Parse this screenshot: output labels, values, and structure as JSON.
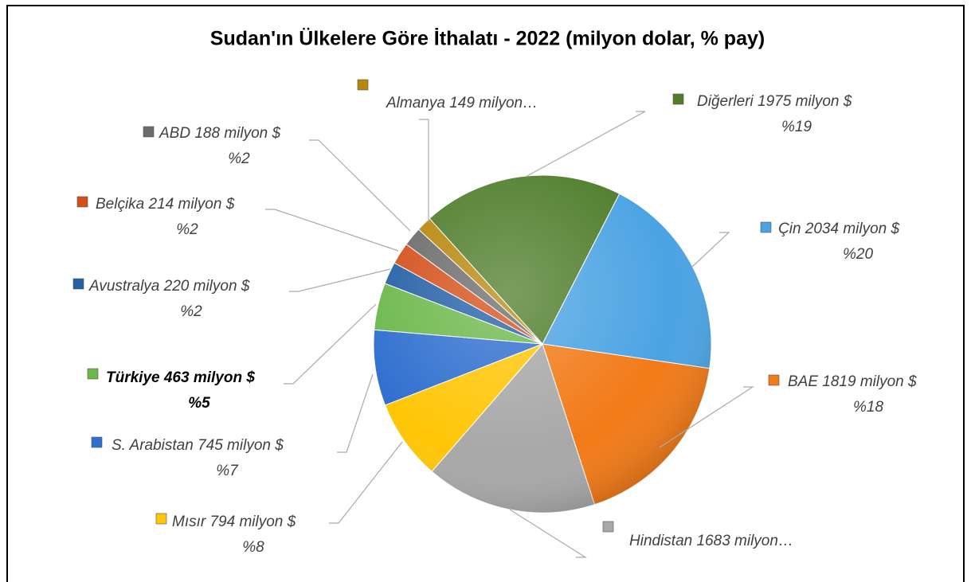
{
  "chart_data": {
    "type": "pie",
    "title": "Sudan'ın Ülkelere Göre İthalatı - 2022 (milyon dolar, % pay)",
    "values": [
      1975,
      2034,
      1819,
      1683,
      794,
      745,
      463,
      220,
      214,
      188,
      149
    ],
    "value_labels": [
      "Diğerleri 1975 milyon $",
      "Çin 2034 milyon $",
      "BAE 1819 milyon $",
      "Hindistan 1683 milyon…",
      "Mısır 794 milyon $",
      "S. Arabistan  745 milyon $",
      "Türkiye 463 milyon $",
      "Avustralya 220 milyon $",
      "Belçika 214 milyon $",
      "ABD 188 milyon $",
      "Almanya 149 milyon…"
    ],
    "shares": [
      19,
      20,
      18,
      null,
      8,
      7,
      5,
      2,
      2,
      2,
      null
    ],
    "share_labels": [
      "%19",
      "%20",
      "%18",
      null,
      "%8",
      "%7",
      "%5",
      "%2",
      "%2",
      "%2",
      null
    ],
    "colors": [
      "#4f7d2b",
      "#4ba3e3",
      "#f27a17",
      "#a8a8a8",
      "#ffc607",
      "#2f6fcf",
      "#6cb84b",
      "#2560a6",
      "#d4501b",
      "#6b6b6b",
      "#b8860b"
    ]
  }
}
